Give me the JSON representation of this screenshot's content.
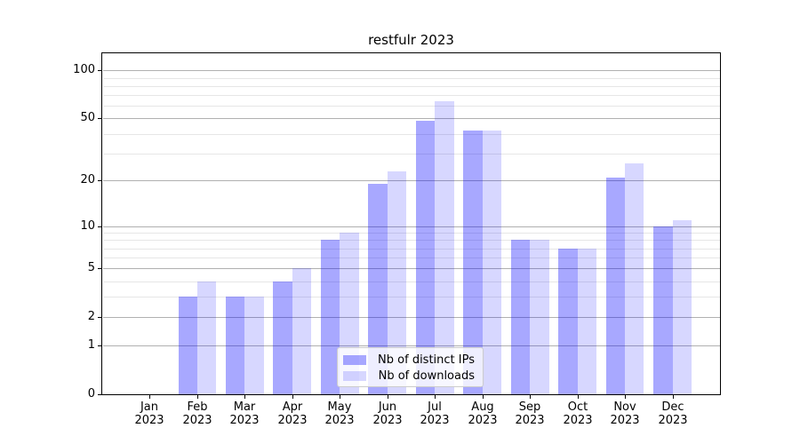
{
  "figure": {
    "background": "#ffffff"
  },
  "chart_data": {
    "type": "bar",
    "title": "restfulr 2023",
    "categories": [
      "Jan 2023",
      "Feb 2023",
      "Mar 2023",
      "Apr 2023",
      "May 2023",
      "Jun 2023",
      "Jul 2023",
      "Aug 2023",
      "Sep 2023",
      "Oct 2023",
      "Nov 2023",
      "Dec 2023"
    ],
    "series": [
      {
        "name": "Nb of distinct IPs",
        "color": "rgba(0,0,255,0.34)",
        "values": [
          0,
          3,
          3,
          4,
          8,
          19,
          48,
          42,
          8,
          7,
          21,
          10
        ]
      },
      {
        "name": "Nb of downloads",
        "color": "rgba(0,0,255,0.155)",
        "values": [
          0,
          4,
          3,
          5,
          9,
          23,
          64,
          42,
          8,
          7,
          26,
          11
        ]
      }
    ],
    "yscale": "log1p",
    "ylim": [
      0,
      128
    ],
    "y_tick_values": [
      0,
      1,
      2,
      5,
      10,
      20,
      50,
      100
    ],
    "y_tick_labels": [
      "0",
      "1",
      "2",
      "5",
      "10",
      "20",
      "50",
      "100"
    ],
    "y_minor_gridlines": [
      3,
      4,
      6,
      7,
      8,
      9,
      30,
      40,
      60,
      70,
      80,
      90
    ],
    "grid": "both",
    "legend_position": "lower center",
    "style": {
      "grid_major_color": "#b0b0b0",
      "grid_minor_color": "#e6e6e6",
      "axis_color": "#000000",
      "title_color": "#000000"
    }
  }
}
